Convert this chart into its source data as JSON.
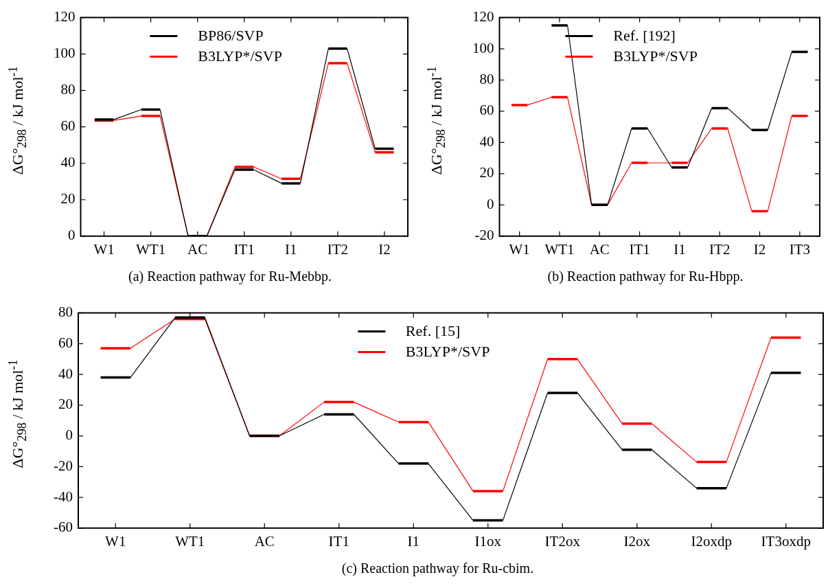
{
  "chart_data": [
    {
      "type": "line",
      "ylabel": "ΔG°$_{298}$ / kJ mol$^{-1}$",
      "annotations": [
        "(a) Reaction pathway for Ru-Mebbp."
      ],
      "categories": [
        null,
        null,
        "W1",
        null,
        null,
        null,
        null,
        "WT1",
        null,
        null,
        null,
        null,
        "AC",
        null,
        null,
        null,
        null,
        "IT1",
        null,
        null,
        null,
        null,
        "I1",
        null,
        null,
        null,
        null,
        "IT2",
        null,
        null,
        null,
        null,
        "I2",
        null,
        null
      ],
      "series": [
        {
          "name": "BP86/SVP",
          "color": "#000000",
          "values": [
            null,
            64,
            64,
            64,
            null,
            null,
            69.5,
            69.5,
            69.5,
            null,
            null,
            0,
            0,
            0,
            null,
            null,
            36.5,
            36.5,
            36.5,
            null,
            null,
            29,
            29,
            29,
            null,
            null,
            103,
            103,
            103,
            null,
            null,
            48,
            48,
            48,
            null
          ]
        },
        {
          "name": "B3LYP*/SVP",
          "color": "#ff0000",
          "values": [
            null,
            63.5,
            63.5,
            63.5,
            null,
            null,
            66,
            66,
            66,
            null,
            null,
            0,
            0,
            0,
            null,
            null,
            38,
            38,
            38,
            null,
            null,
            31.5,
            31.5,
            31.5,
            null,
            null,
            95,
            95,
            95,
            null,
            null,
            46,
            46,
            46,
            null
          ]
        }
      ],
      "ylim": [
        0,
        120
      ],
      "yticks": [
        0,
        20,
        40,
        60,
        80,
        100,
        120
      ],
      "legend": "top",
      "grid": false
    },
    {
      "type": "line",
      "ylabel": "ΔG°$_{298}$ / kJ mol$^{-1}$",
      "annotations": [
        "(b) Reaction pathway for Ru-Hbpp."
      ],
      "categories": [
        null,
        null,
        "W1",
        null,
        null,
        null,
        null,
        "WT1",
        null,
        null,
        null,
        null,
        "AC",
        null,
        null,
        null,
        null,
        "IT1",
        null,
        null,
        null,
        null,
        "I1",
        null,
        null,
        null,
        null,
        "IT2",
        null,
        null,
        null,
        null,
        "I2",
        null,
        null,
        null,
        null,
        "IT3",
        null,
        null
      ],
      "series": [
        {
          "name": "Ref.  [192]",
          "color": "#000000",
          "values": [
            null,
            null,
            null,
            null,
            null,
            null,
            115,
            115,
            115,
            null,
            null,
            0,
            0,
            0,
            null,
            null,
            49,
            49,
            49,
            null,
            null,
            24,
            24,
            24,
            null,
            null,
            62,
            62,
            62,
            null,
            null,
            48,
            48,
            48,
            null,
            null,
            98,
            98,
            98,
            null
          ]
        },
        {
          "name": "B3LYP*/SVP",
          "color": "#ff0000",
          "values": [
            null,
            64,
            64,
            64,
            null,
            null,
            69,
            69,
            69,
            null,
            null,
            0,
            0,
            0,
            null,
            null,
            27,
            27,
            27,
            null,
            null,
            27,
            27,
            27,
            null,
            null,
            49,
            49,
            49,
            null,
            null,
            -4,
            -4,
            -4,
            null,
            null,
            57,
            57,
            57,
            null
          ]
        }
      ],
      "ylim": [
        -20,
        120
      ],
      "yticks": [
        -20,
        0,
        20,
        40,
        60,
        80,
        100,
        120
      ],
      "legend": "top",
      "grid": false
    },
    {
      "type": "line",
      "ylabel": "ΔG°$_{298}$ / kJ mol$^{-1}$",
      "annotations": [
        "(c) Reaction pathway for Ru-cbim."
      ],
      "categories": [
        null,
        null,
        "W1",
        null,
        null,
        null,
        null,
        "WT1",
        null,
        null,
        null,
        null,
        "AC",
        null,
        null,
        null,
        null,
        "IT1",
        null,
        null,
        null,
        null,
        "I1",
        null,
        null,
        null,
        null,
        "I1ox",
        null,
        null,
        null,
        null,
        "IT2ox",
        null,
        null,
        null,
        null,
        "I2ox",
        null,
        null,
        null,
        null,
        "I2oxdp",
        null,
        null,
        null,
        null,
        "IT3oxdp",
        null,
        null
      ],
      "series": [
        {
          "name": "Ref.  [15]",
          "color": "#000000",
          "values": [
            null,
            38,
            38,
            38,
            null,
            null,
            77,
            77,
            77,
            null,
            null,
            0,
            0,
            0,
            null,
            null,
            14,
            14,
            14,
            null,
            null,
            -18,
            -18,
            -18,
            null,
            null,
            -55,
            -55,
            -55,
            null,
            null,
            28,
            28,
            28,
            null,
            null,
            -9,
            -9,
            -9,
            null,
            null,
            -34,
            -34,
            -34,
            null,
            null,
            41,
            41,
            41,
            null
          ]
        },
        {
          "name": "B3LYP*/SVP",
          "color": "#ff0000",
          "values": [
            null,
            57,
            57,
            57,
            null,
            null,
            76,
            76,
            76,
            null,
            null,
            0,
            0,
            0,
            null,
            null,
            22,
            22,
            22,
            null,
            null,
            9,
            9,
            9,
            null,
            null,
            -36,
            -36,
            -36,
            null,
            null,
            50,
            50,
            50,
            null,
            null,
            8,
            8,
            8,
            null,
            null,
            -17,
            -17,
            -17,
            null,
            null,
            64,
            64,
            64,
            null
          ]
        }
      ],
      "ylim": [
        -60,
        80
      ],
      "yticks": [
        -60,
        -40,
        -20,
        0,
        20,
        40,
        60,
        80
      ],
      "legend": "top",
      "grid": false
    }
  ]
}
